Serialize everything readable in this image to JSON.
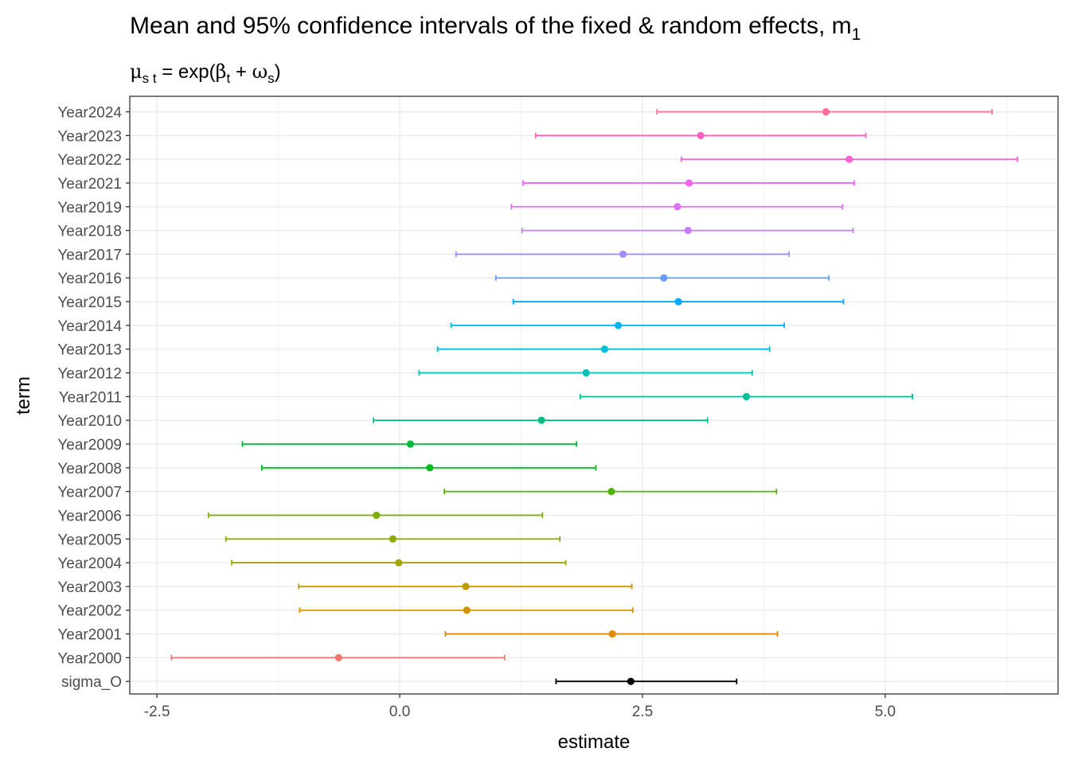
{
  "chart_data": {
    "type": "errorbar",
    "title": "Mean and 95% confidence intervals of the fixed & random effects, m",
    "title_subscript": "1",
    "subtitle": {
      "mu": "μ",
      "mu_sub": "s t",
      "eq": " = exp(",
      "beta": "β",
      "beta_sub": "t",
      "plus": " + ",
      "omega": "ω",
      "omega_sub": "s",
      "close": ")"
    },
    "xlabel": "estimate",
    "ylabel": "term",
    "xlim": [
      -2.78,
      6.78
    ],
    "x_ticks": [
      -2.5,
      0.0,
      2.5,
      5.0
    ],
    "x_tick_labels": [
      "-2.5",
      "0.0",
      "2.5",
      "5.0"
    ],
    "grid": true,
    "legend": "none",
    "terms": [
      {
        "term": "Year2024",
        "estimate": 4.39,
        "low": 2.65,
        "high": 6.1,
        "color": "#FF6C91"
      },
      {
        "term": "Year2023",
        "estimate": 3.1,
        "low": 1.4,
        "high": 4.8,
        "color": "#FF62BC"
      },
      {
        "term": "Year2022",
        "estimate": 4.63,
        "low": 2.9,
        "high": 6.36,
        "color": "#FC61D5"
      },
      {
        "term": "Year2021",
        "estimate": 2.98,
        "low": 1.27,
        "high": 4.68,
        "color": "#F066EA"
      },
      {
        "term": "Year2019",
        "estimate": 2.86,
        "low": 1.15,
        "high": 4.56,
        "color": "#DF70F8"
      },
      {
        "term": "Year2018",
        "estimate": 2.97,
        "low": 1.26,
        "high": 4.67,
        "color": "#C77CFF"
      },
      {
        "term": "Year2017",
        "estimate": 2.3,
        "low": 0.58,
        "high": 4.01,
        "color": "#A58AFF"
      },
      {
        "term": "Year2016",
        "estimate": 2.72,
        "low": 0.99,
        "high": 4.42,
        "color": "#619CFF"
      },
      {
        "term": "Year2015",
        "estimate": 2.87,
        "low": 1.17,
        "high": 4.57,
        "color": "#00A9FF"
      },
      {
        "term": "Year2014",
        "estimate": 2.25,
        "low": 0.53,
        "high": 3.96,
        "color": "#00B4EF"
      },
      {
        "term": "Year2013",
        "estimate": 2.11,
        "low": 0.39,
        "high": 3.81,
        "color": "#00BCD8"
      },
      {
        "term": "Year2012",
        "estimate": 1.92,
        "low": 0.2,
        "high": 3.63,
        "color": "#00C0B8"
      },
      {
        "term": "Year2011",
        "estimate": 3.57,
        "low": 1.86,
        "high": 5.28,
        "color": "#00C19A"
      },
      {
        "term": "Year2010",
        "estimate": 1.46,
        "low": -0.27,
        "high": 3.17,
        "color": "#00BF7D"
      },
      {
        "term": "Year2009",
        "estimate": 0.11,
        "low": -1.62,
        "high": 1.82,
        "color": "#00BA38"
      },
      {
        "term": "Year2008",
        "estimate": 0.31,
        "low": -1.42,
        "high": 2.02,
        "color": "#00B81F"
      },
      {
        "term": "Year2007",
        "estimate": 2.18,
        "low": 0.46,
        "high": 3.88,
        "color": "#53B400"
      },
      {
        "term": "Year2006",
        "estimate": -0.24,
        "low": -1.97,
        "high": 1.47,
        "color": "#7CAE00"
      },
      {
        "term": "Year2005",
        "estimate": -0.07,
        "low": -1.79,
        "high": 1.65,
        "color": "#94A900"
      },
      {
        "term": "Year2004",
        "estimate": -0.01,
        "low": -1.73,
        "high": 1.71,
        "color": "#A3A500"
      },
      {
        "term": "Year2003",
        "estimate": 0.68,
        "low": -1.04,
        "high": 2.39,
        "color": "#C09B00"
      },
      {
        "term": "Year2002",
        "estimate": 0.69,
        "low": -1.03,
        "high": 2.4,
        "color": "#D39200"
      },
      {
        "term": "Year2001",
        "estimate": 2.19,
        "low": 0.47,
        "high": 3.89,
        "color": "#E58700"
      },
      {
        "term": "Year2000",
        "estimate": -0.63,
        "low": -2.35,
        "high": 1.08,
        "color": "#F8766D"
      },
      {
        "term": "sigma_O",
        "estimate": 2.38,
        "low": 1.61,
        "high": 3.47,
        "color": "#000000"
      }
    ]
  }
}
